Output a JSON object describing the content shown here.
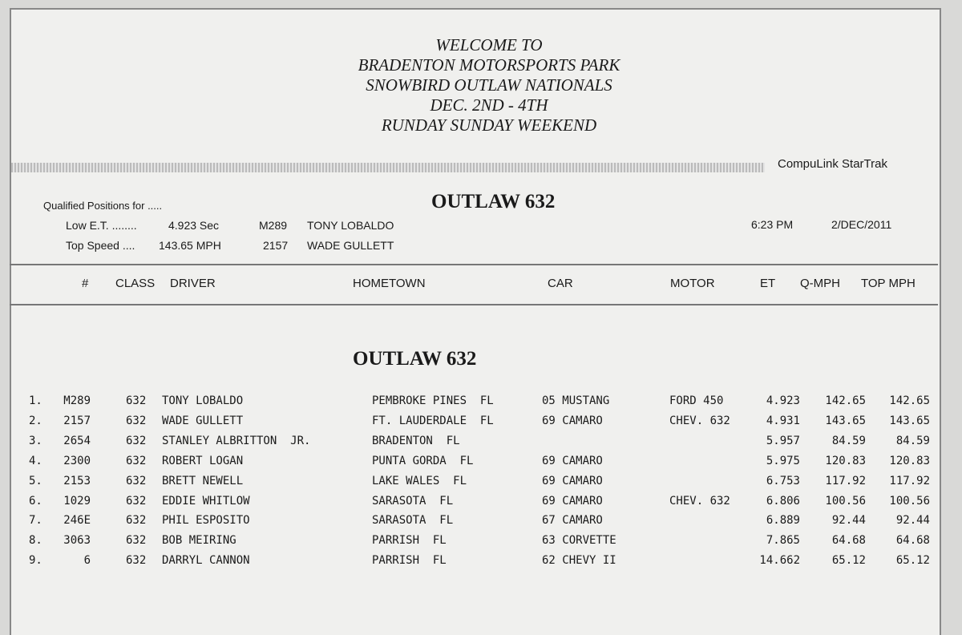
{
  "welcome": [
    "WELCOME TO",
    "BRADENTON MOTORSPORTS PARK",
    "SNOWBIRD OUTLAW NATIONALS",
    "DEC. 2ND - 4TH",
    "RUNDAY SUNDAY WEEKEND"
  ],
  "brand": "CompuLink  StarTrak",
  "class_title": "OUTLAW 632",
  "qualified": {
    "label": "Qualified Positions for .....",
    "low_et": {
      "label": "Low E.T. ........",
      "value": "4.923 Sec",
      "number": "M289",
      "driver": "TONY LOBALDO"
    },
    "top_speed": {
      "label": "Top Speed ....",
      "value": "143.65 MPH",
      "number": "2157",
      "driver": "WADE GULLETT"
    }
  },
  "time": "6:23 PM",
  "date": "2/DEC/2011",
  "columns": [
    "#",
    "CLASS",
    "DRIVER",
    "HOMETOWN",
    "CAR",
    "MOTOR",
    "ET",
    "Q-MPH",
    "TOP MPH"
  ],
  "section_title": "OUTLAW 632",
  "rows": [
    {
      "pos": "1.",
      "num": "M289",
      "class": "632",
      "driver": "TONY LOBALDO",
      "hometown": "PEMBROKE PINES  FL",
      "car": "05 MUSTANG",
      "motor": "FORD 450",
      "et": "4.923",
      "qmph": "142.65",
      "top": "142.65"
    },
    {
      "pos": "2.",
      "num": "2157",
      "class": "632",
      "driver": "WADE GULLETT",
      "hometown": "FT. LAUDERDALE  FL",
      "car": "69 CAMARO",
      "motor": "CHEV. 632",
      "et": "4.931",
      "qmph": "143.65",
      "top": "143.65"
    },
    {
      "pos": "3.",
      "num": "2654",
      "class": "632",
      "driver": "STANLEY ALBRITTON  JR.",
      "hometown": "BRADENTON  FL",
      "car": "",
      "motor": "",
      "et": "5.957",
      "qmph": "84.59",
      "top": "84.59"
    },
    {
      "pos": "4.",
      "num": "2300",
      "class": "632",
      "driver": "ROBERT LOGAN",
      "hometown": "PUNTA GORDA  FL",
      "car": "69 CAMARO",
      "motor": "",
      "et": "5.975",
      "qmph": "120.83",
      "top": "120.83"
    },
    {
      "pos": "5.",
      "num": "2153",
      "class": "632",
      "driver": "BRETT NEWELL",
      "hometown": "LAKE WALES  FL",
      "car": "69 CAMARO",
      "motor": "",
      "et": "6.753",
      "qmph": "117.92",
      "top": "117.92"
    },
    {
      "pos": "6.",
      "num": "1029",
      "class": "632",
      "driver": "EDDIE WHITLOW",
      "hometown": "SARASOTA  FL",
      "car": "69 CAMARO",
      "motor": "CHEV. 632",
      "et": "6.806",
      "qmph": "100.56",
      "top": "100.56"
    },
    {
      "pos": "7.",
      "num": "246E",
      "class": "632",
      "driver": "PHIL ESPOSITO",
      "hometown": "SARASOTA  FL",
      "car": "67 CAMARO",
      "motor": "",
      "et": "6.889",
      "qmph": "92.44",
      "top": "92.44"
    },
    {
      "pos": "8.",
      "num": "3063",
      "class": "632",
      "driver": "BOB MEIRING",
      "hometown": "PARRISH  FL",
      "car": "63 CORVETTE",
      "motor": "",
      "et": "7.865",
      "qmph": "64.68",
      "top": "64.68"
    },
    {
      "pos": "9.",
      "num": "6",
      "class": "632",
      "driver": "DARRYL CANNON",
      "hometown": "PARRISH  FL",
      "car": "62 CHEVY II",
      "motor": "",
      "et": "14.662",
      "qmph": "65.12",
      "top": "65.12"
    }
  ]
}
